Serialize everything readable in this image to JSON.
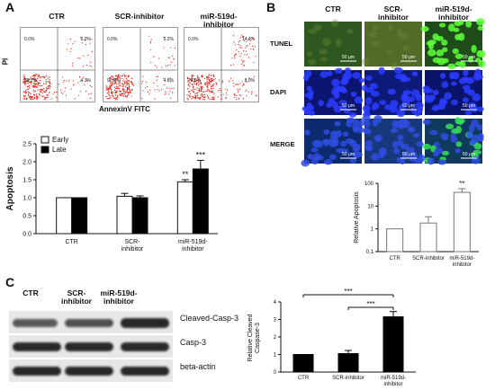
{
  "panels": {
    "a": "A",
    "b": "B",
    "c": "C"
  },
  "panel_a": {
    "groups": [
      "CTR",
      "SCR-inhibitor",
      "miR-519d-\ninhibitor"
    ],
    "facs": [
      {
        "ul": "0.0%",
        "ur": "6.0%",
        "ll": "89.7%",
        "lr": "4.3%"
      },
      {
        "ul": "0.0%",
        "ur": "5.2%",
        "ll": "90.0%",
        "lr": "4.8%"
      },
      {
        "ul": "0.0%",
        "ur": "14.4%",
        "ll": "77.6%",
        "lr": "8.0%"
      }
    ],
    "facs_y_label": "PI",
    "facs_x_label": "AnnexinV FITC"
  },
  "panel_b": {
    "columns": [
      "CTR",
      "SCR-\ninhibitor",
      "miR-519d-\ninhibitor"
    ],
    "rows": [
      "TUNEL",
      "DAPI",
      "MERGE"
    ],
    "scale_bar": "50 μm"
  },
  "panel_c": {
    "lanes": [
      "CTR",
      "SCR-\ninhibitor",
      "miR-519d-\ninhibitor"
    ],
    "blots": [
      "Cleaved-Casp-3",
      "Casp-3",
      "beta-actin"
    ]
  },
  "chart_data": [
    {
      "id": "apoptosis",
      "type": "bar",
      "categories": [
        "CTR",
        "SCR-\ninhibitor",
        "miR-519d-\ninhibitor"
      ],
      "series": [
        {
          "name": "Early",
          "values": [
            1.0,
            1.04,
            1.44
          ],
          "errors": [
            0,
            0.08,
            0.06
          ],
          "color": "#ffffff"
        },
        {
          "name": "Late",
          "values": [
            1.0,
            1.0,
            1.8
          ],
          "errors": [
            0,
            0.05,
            0.24
          ],
          "color": "#000000"
        }
      ],
      "ylabel": "Apoptosis",
      "ylim": [
        0,
        2.5
      ],
      "yticks": [
        "0.0",
        "0.5",
        "1.0",
        "1.5",
        "2.0",
        "2.5"
      ],
      "annotations": [
        "**",
        "***"
      ],
      "legend": "top-left",
      "grid": false
    },
    {
      "id": "relative_apoptosis",
      "type": "bar",
      "scale": "log",
      "categories": [
        "CTR",
        "SCR-inhibitor",
        "miR-519d-\ninhibitor"
      ],
      "values": [
        1.0,
        1.8,
        40
      ],
      "errors": [
        0,
        1.6,
        18
      ],
      "ylabel": "Relative Apoptosis",
      "ylim": [
        0.1,
        100
      ],
      "yticks": [
        "0.1",
        "1",
        "10",
        "100"
      ],
      "annotations": [
        "**"
      ],
      "grid": false
    },
    {
      "id": "cleaved_caspase3",
      "type": "bar",
      "categories": [
        "CTR",
        "SCR-inhibitor",
        "miR-519d-\ninhibitor"
      ],
      "values": [
        1.0,
        1.05,
        3.15
      ],
      "errors": [
        0,
        0.18,
        0.3
      ],
      "ylabel": "Relative Cleaved\nCaspase-3",
      "ylim": [
        0,
        4
      ],
      "yticks": [
        "0",
        "1",
        "2",
        "3",
        "4"
      ],
      "annotations": [
        "***",
        "***"
      ],
      "grid": false
    }
  ]
}
